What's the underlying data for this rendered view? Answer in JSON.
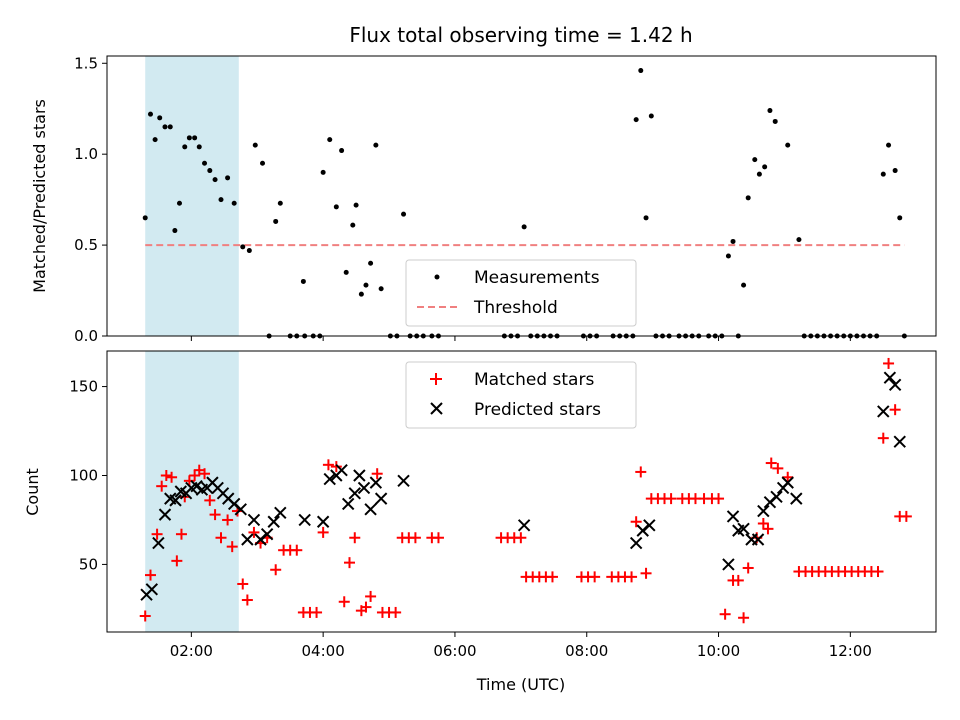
{
  "chart_data": {
    "title": "Flux total observing time = 1.42 h",
    "xlabel": "Time (UTC)",
    "x_units": "hours UTC",
    "xlim": [
      0.72,
      13.3
    ],
    "xticks": [
      {
        "value": 2,
        "label": "02:00"
      },
      {
        "value": 4,
        "label": "04:00"
      },
      {
        "value": 6,
        "label": "06:00"
      },
      {
        "value": 8,
        "label": "08:00"
      },
      {
        "value": 10,
        "label": "10:00"
      },
      {
        "value": 12,
        "label": "12:00"
      }
    ],
    "shaded_region": {
      "x": [
        1.3,
        2.72
      ],
      "color": "#add8e6"
    },
    "top": {
      "type": "scatter",
      "ylabel": "Matched/Predicted stars",
      "ylim": [
        0,
        1.54
      ],
      "yticks": [
        {
          "value": 0,
          "label": "0.0"
        },
        {
          "value": 0.5,
          "label": "0.5"
        },
        {
          "value": 1.0,
          "label": "1.0"
        },
        {
          "value": 1.5,
          "label": "1.5"
        }
      ],
      "threshold": {
        "name": "Threshold",
        "y": 0.5,
        "x": [
          1.3,
          12.82
        ],
        "color": "#f08080"
      },
      "measurements": {
        "name": "Measurements",
        "color": "#000000",
        "points": [
          [
            1.3,
            0.65
          ],
          [
            1.38,
            1.22
          ],
          [
            1.45,
            1.08
          ],
          [
            1.52,
            1.2
          ],
          [
            1.6,
            1.15
          ],
          [
            1.68,
            1.15
          ],
          [
            1.75,
            0.58
          ],
          [
            1.82,
            0.73
          ],
          [
            1.9,
            1.04
          ],
          [
            1.97,
            1.09
          ],
          [
            2.05,
            1.09
          ],
          [
            2.12,
            1.04
          ],
          [
            2.2,
            0.95
          ],
          [
            2.28,
            0.91
          ],
          [
            2.36,
            0.86
          ],
          [
            2.45,
            0.75
          ],
          [
            2.55,
            0.87
          ],
          [
            2.65,
            0.73
          ],
          [
            2.78,
            0.49
          ],
          [
            2.88,
            0.47
          ],
          [
            2.97,
            1.05
          ],
          [
            3.08,
            0.95
          ],
          [
            3.18,
            0
          ],
          [
            3.28,
            0.63
          ],
          [
            3.35,
            0.73
          ],
          [
            3.5,
            0
          ],
          [
            3.6,
            0
          ],
          [
            3.7,
            0.3
          ],
          [
            3.72,
            0
          ],
          [
            3.85,
            0
          ],
          [
            3.95,
            0
          ],
          [
            4.0,
            0.9
          ],
          [
            4.1,
            1.08
          ],
          [
            4.2,
            0.71
          ],
          [
            4.28,
            1.02
          ],
          [
            4.35,
            0.35
          ],
          [
            4.45,
            0.61
          ],
          [
            4.5,
            0.72
          ],
          [
            4.58,
            0.23
          ],
          [
            4.65,
            0.28
          ],
          [
            4.72,
            0.4
          ],
          [
            4.8,
            1.05
          ],
          [
            4.88,
            0.26
          ],
          [
            5.02,
            0
          ],
          [
            5.12,
            0
          ],
          [
            5.22,
            0.67
          ],
          [
            5.32,
            0
          ],
          [
            5.42,
            0
          ],
          [
            5.52,
            0
          ],
          [
            5.65,
            0
          ],
          [
            5.75,
            0
          ],
          [
            6.75,
            0
          ],
          [
            6.85,
            0
          ],
          [
            6.95,
            0
          ],
          [
            7.05,
            0.6
          ],
          [
            7.15,
            0
          ],
          [
            7.25,
            0
          ],
          [
            7.35,
            0
          ],
          [
            7.45,
            0
          ],
          [
            7.55,
            0
          ],
          [
            7.95,
            0
          ],
          [
            8.05,
            0
          ],
          [
            8.15,
            0
          ],
          [
            8.4,
            0
          ],
          [
            8.5,
            0
          ],
          [
            8.6,
            0
          ],
          [
            8.7,
            0
          ],
          [
            8.75,
            1.19
          ],
          [
            8.82,
            1.46
          ],
          [
            8.9,
            0.65
          ],
          [
            8.98,
            1.21
          ],
          [
            9.05,
            0
          ],
          [
            9.15,
            0
          ],
          [
            9.25,
            0
          ],
          [
            9.4,
            0
          ],
          [
            9.5,
            0
          ],
          [
            9.6,
            0
          ],
          [
            9.7,
            0
          ],
          [
            9.85,
            0
          ],
          [
            9.95,
            0
          ],
          [
            10.05,
            0
          ],
          [
            10.15,
            0.44
          ],
          [
            10.22,
            0.52
          ],
          [
            10.3,
            0
          ],
          [
            10.38,
            0.28
          ],
          [
            10.45,
            0.76
          ],
          [
            10.55,
            0.97
          ],
          [
            10.62,
            0.89
          ],
          [
            10.7,
            0.93
          ],
          [
            10.78,
            1.24
          ],
          [
            10.86,
            1.18
          ],
          [
            11.05,
            1.05
          ],
          [
            11.22,
            0.53
          ],
          [
            11.3,
            0
          ],
          [
            11.4,
            0
          ],
          [
            11.5,
            0
          ],
          [
            11.6,
            0
          ],
          [
            11.7,
            0
          ],
          [
            11.8,
            0
          ],
          [
            11.9,
            0
          ],
          [
            12.0,
            0
          ],
          [
            12.1,
            0
          ],
          [
            12.2,
            0
          ],
          [
            12.3,
            0
          ],
          [
            12.4,
            0
          ],
          [
            12.5,
            0.89
          ],
          [
            12.58,
            1.05
          ],
          [
            12.68,
            0.91
          ],
          [
            12.75,
            0.65
          ],
          [
            12.82,
            0
          ]
        ]
      },
      "legend": {
        "position": "lower-center"
      }
    },
    "bottom": {
      "type": "scatter",
      "ylabel": "Count",
      "ylim": [
        12,
        170
      ],
      "yticks": [
        {
          "value": 50,
          "label": "50"
        },
        {
          "value": 100,
          "label": "100"
        },
        {
          "value": 150,
          "label": "150"
        }
      ],
      "series": [
        {
          "name": "Matched stars",
          "marker": "plus",
          "color": "#ff0000",
          "points": [
            [
              1.3,
              21
            ],
            [
              1.38,
              44
            ],
            [
              1.48,
              67
            ],
            [
              1.55,
              94
            ],
            [
              1.62,
              100
            ],
            [
              1.7,
              99
            ],
            [
              1.78,
              52
            ],
            [
              1.85,
              67
            ],
            [
              1.9,
              88
            ],
            [
              1.97,
              97
            ],
            [
              2.05,
              100
            ],
            [
              2.12,
              103
            ],
            [
              2.2,
              101
            ],
            [
              2.28,
              86
            ],
            [
              2.36,
              78
            ],
            [
              2.45,
              65
            ],
            [
              2.55,
              75
            ],
            [
              2.62,
              60
            ],
            [
              2.7,
              80
            ],
            [
              2.78,
              39
            ],
            [
              2.85,
              30
            ],
            [
              2.95,
              68
            ],
            [
              3.05,
              62
            ],
            [
              3.15,
              65
            ],
            [
              3.28,
              47
            ],
            [
              3.4,
              58
            ],
            [
              3.5,
              58
            ],
            [
              3.6,
              58
            ],
            [
              3.7,
              23
            ],
            [
              3.8,
              23
            ],
            [
              3.9,
              23
            ],
            [
              4.0,
              68
            ],
            [
              4.08,
              106
            ],
            [
              4.2,
              105
            ],
            [
              4.32,
              29
            ],
            [
              4.4,
              51
            ],
            [
              4.48,
              65
            ],
            [
              4.58,
              24
            ],
            [
              4.65,
              26
            ],
            [
              4.72,
              32
            ],
            [
              4.82,
              101
            ],
            [
              4.9,
              23
            ],
            [
              5.0,
              23
            ],
            [
              5.1,
              23
            ],
            [
              5.2,
              65
            ],
            [
              5.3,
              65
            ],
            [
              5.4,
              65
            ],
            [
              5.65,
              65
            ],
            [
              5.75,
              65
            ],
            [
              6.7,
              65
            ],
            [
              6.8,
              65
            ],
            [
              6.9,
              65
            ],
            [
              7.0,
              65
            ],
            [
              7.08,
              43
            ],
            [
              7.18,
              43
            ],
            [
              7.28,
              43
            ],
            [
              7.38,
              43
            ],
            [
              7.48,
              43
            ],
            [
              7.92,
              43
            ],
            [
              8.02,
              43
            ],
            [
              8.12,
              43
            ],
            [
              8.38,
              43
            ],
            [
              8.48,
              43
            ],
            [
              8.58,
              43
            ],
            [
              8.68,
              43
            ],
            [
              8.75,
              74
            ],
            [
              8.82,
              102
            ],
            [
              8.9,
              45
            ],
            [
              8.98,
              87
            ],
            [
              9.08,
              87
            ],
            [
              9.18,
              87
            ],
            [
              9.28,
              87
            ],
            [
              9.45,
              87
            ],
            [
              9.55,
              87
            ],
            [
              9.65,
              87
            ],
            [
              9.78,
              87
            ],
            [
              9.9,
              87
            ],
            [
              10.0,
              87
            ],
            [
              10.1,
              22
            ],
            [
              10.22,
              41
            ],
            [
              10.3,
              41
            ],
            [
              10.38,
              20
            ],
            [
              10.45,
              48
            ],
            [
              10.58,
              65
            ],
            [
              10.68,
              73
            ],
            [
              10.75,
              70
            ],
            [
              10.8,
              107
            ],
            [
              10.9,
              104
            ],
            [
              11.05,
              99
            ],
            [
              11.22,
              46
            ],
            [
              11.32,
              46
            ],
            [
              11.42,
              46
            ],
            [
              11.52,
              46
            ],
            [
              11.62,
              46
            ],
            [
              11.72,
              46
            ],
            [
              11.82,
              46
            ],
            [
              11.92,
              46
            ],
            [
              12.02,
              46
            ],
            [
              12.12,
              46
            ],
            [
              12.22,
              46
            ],
            [
              12.32,
              46
            ],
            [
              12.42,
              46
            ],
            [
              12.5,
              121
            ],
            [
              12.58,
              163
            ],
            [
              12.68,
              137
            ],
            [
              12.75,
              77
            ],
            [
              12.85,
              77
            ]
          ]
        },
        {
          "name": "Predicted stars",
          "marker": "cross",
          "color": "#000000",
          "points": [
            [
              1.32,
              33
            ],
            [
              1.4,
              36
            ],
            [
              1.5,
              62
            ],
            [
              1.6,
              78
            ],
            [
              1.68,
              87
            ],
            [
              1.76,
              86
            ],
            [
              1.84,
              91
            ],
            [
              1.92,
              90
            ],
            [
              2.0,
              93
            ],
            [
              2.08,
              94
            ],
            [
              2.16,
              92
            ],
            [
              2.24,
              93
            ],
            [
              2.32,
              96
            ],
            [
              2.4,
              93
            ],
            [
              2.48,
              90
            ],
            [
              2.56,
              87
            ],
            [
              2.65,
              84
            ],
            [
              2.75,
              81
            ],
            [
              2.85,
              64
            ],
            [
              2.95,
              75
            ],
            [
              3.05,
              64
            ],
            [
              3.15,
              67
            ],
            [
              3.25,
              74
            ],
            [
              3.35,
              79
            ],
            [
              3.72,
              75
            ],
            [
              4.0,
              74
            ],
            [
              4.1,
              98
            ],
            [
              4.2,
              100
            ],
            [
              4.28,
              103
            ],
            [
              4.38,
              84
            ],
            [
              4.48,
              90
            ],
            [
              4.55,
              100
            ],
            [
              4.62,
              93
            ],
            [
              4.72,
              81
            ],
            [
              4.8,
              96
            ],
            [
              4.88,
              87
            ],
            [
              5.22,
              97
            ],
            [
              7.05,
              72
            ],
            [
              8.75,
              62
            ],
            [
              8.85,
              69
            ],
            [
              8.95,
              72
            ],
            [
              10.15,
              50
            ],
            [
              10.22,
              77
            ],
            [
              10.3,
              69
            ],
            [
              10.38,
              70
            ],
            [
              10.5,
              64
            ],
            [
              10.6,
              64
            ],
            [
              10.68,
              80
            ],
            [
              10.78,
              85
            ],
            [
              10.88,
              88
            ],
            [
              10.98,
              93
            ],
            [
              11.05,
              96
            ],
            [
              11.18,
              87
            ],
            [
              12.5,
              136
            ],
            [
              12.6,
              155
            ],
            [
              12.68,
              151
            ],
            [
              12.75,
              119
            ]
          ]
        }
      ],
      "legend": {
        "position": "upper-center"
      }
    }
  }
}
